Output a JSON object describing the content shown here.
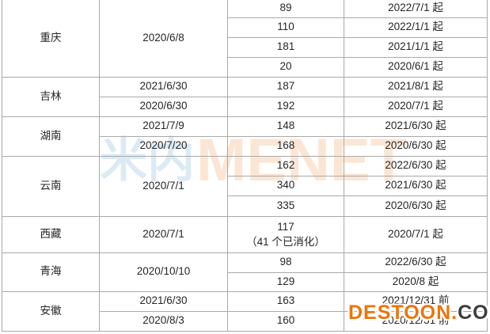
{
  "colors": {
    "table_border": "#a9a9a9",
    "cell_text": "#262626",
    "watermark_cn_blue": "#dcebf3",
    "watermark_en_peach": "#fbe6d5",
    "destoon_orange": "#ed7409",
    "destoon_gray": "#3d3d3d"
  },
  "watermarks": {
    "logo_cn": "米内",
    "logo_en": "MENET",
    "destoon_main": "DESTOON.",
    "destoon_tld": "COM"
  },
  "table": {
    "rows": [
      {
        "province": "重庆",
        "apply_date": "2020/6/8",
        "qty": "89",
        "effective": "2022/7/1 起"
      },
      {
        "qty": "110",
        "effective": "2022/1/1 起"
      },
      {
        "qty": "181",
        "effective": "2021/1/1 起"
      },
      {
        "qty": "20",
        "effective": "2020/6/1 起"
      },
      {
        "province": "吉林",
        "apply_date": "2021/6/30",
        "qty": "187",
        "effective": "2021/8/1 起"
      },
      {
        "apply_date": "2020/6/30",
        "qty": "192",
        "effective": "2020/7/1 起"
      },
      {
        "province": "湖南",
        "apply_date": "2021/7/9",
        "qty": "148",
        "effective": "2021/6/30 起"
      },
      {
        "apply_date": "2020/7/20",
        "qty": "168",
        "effective": "2020/6/30 起"
      },
      {
        "province": "云南",
        "apply_date": "2020/7/1",
        "qty": "162",
        "effective": "2022/6/30 起"
      },
      {
        "qty": "340",
        "effective": "2021/6/30 起"
      },
      {
        "qty": "335",
        "effective": "2020/6/30 起"
      },
      {
        "province": "西藏",
        "apply_date": "2020/7/1",
        "qty": "117",
        "qty_note": "（41 个已消化）",
        "effective": "2020/7/1 起"
      },
      {
        "province": "青海",
        "apply_date": "2020/10/10",
        "qty": "98",
        "effective": "2022/6/30 起"
      },
      {
        "qty": "129",
        "effective": "2020/8 起"
      },
      {
        "province": "安徽",
        "apply_date": "2021/6/30",
        "qty": "163",
        "effective": "2021/12/31 前"
      },
      {
        "apply_date": "2020/8/3",
        "qty": "160",
        "effective": "2020/12/31 前"
      }
    ]
  }
}
